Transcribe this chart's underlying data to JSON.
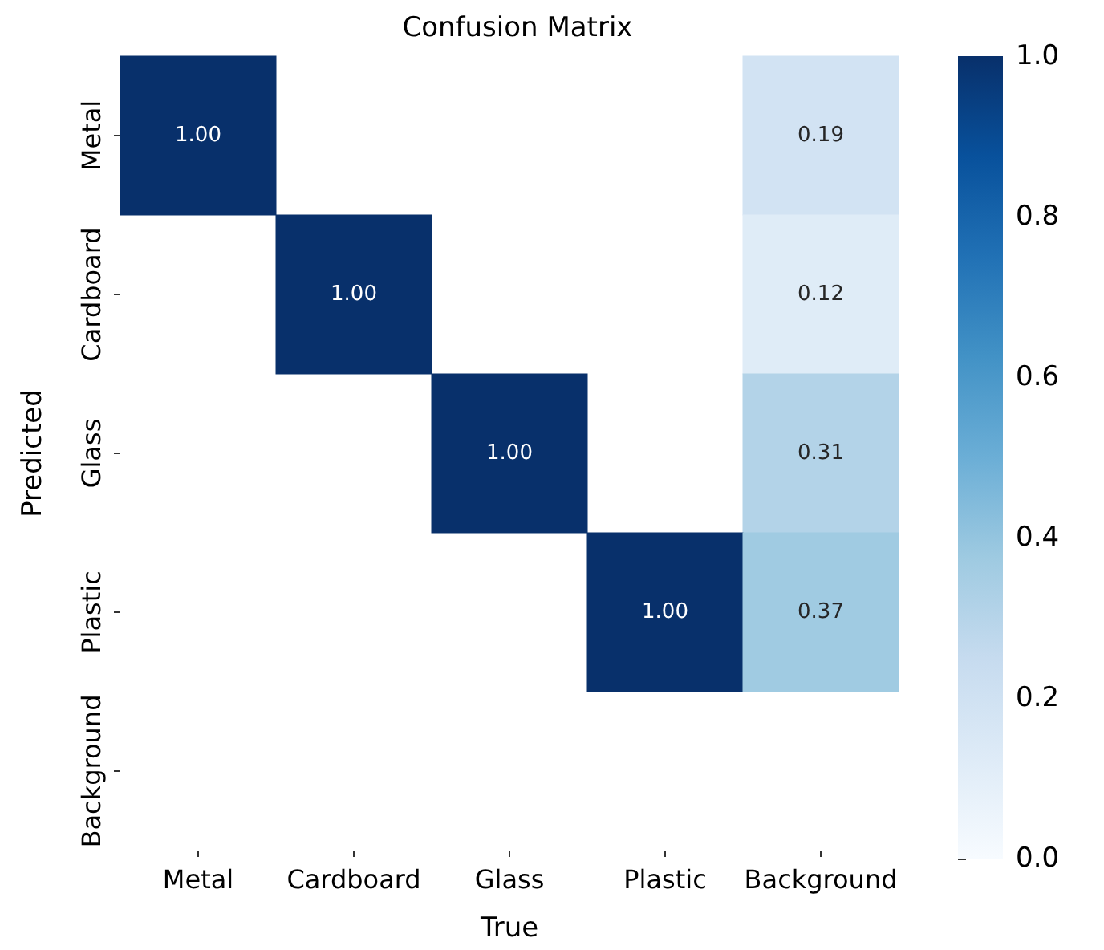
{
  "chart_data": {
    "type": "heatmap",
    "title": "Confusion Matrix",
    "xlabel": "True",
    "ylabel": "Predicted",
    "categories": [
      "Metal",
      "Cardboard",
      "Glass",
      "Plastic",
      "Background"
    ],
    "y_categories": [
      "Metal",
      "Cardboard",
      "Glass",
      "Plastic",
      "Background"
    ],
    "cells": [
      [
        1.0,
        null,
        null,
        null,
        0.19
      ],
      [
        null,
        1.0,
        null,
        null,
        0.12
      ],
      [
        null,
        null,
        1.0,
        null,
        0.31
      ],
      [
        null,
        null,
        null,
        1.0,
        0.37
      ],
      [
        null,
        null,
        null,
        null,
        null
      ]
    ],
    "cell_labels": [
      [
        "1.00",
        null,
        null,
        null,
        "0.19"
      ],
      [
        null,
        "1.00",
        null,
        null,
        "0.12"
      ],
      [
        null,
        null,
        "1.00",
        null,
        "0.31"
      ],
      [
        null,
        null,
        null,
        "1.00",
        "0.37"
      ],
      [
        null,
        null,
        null,
        null,
        null
      ]
    ],
    "clim": [
      0,
      1
    ],
    "cticks": [
      {
        "value": 0,
        "label": "0.0"
      },
      {
        "value": 0.2,
        "label": "0.2"
      },
      {
        "value": 0.4,
        "label": "0.4"
      },
      {
        "value": 0.6,
        "label": "0.6"
      },
      {
        "value": 0.8,
        "label": "0.8"
      },
      {
        "value": 1,
        "label": "1.0"
      }
    ]
  }
}
